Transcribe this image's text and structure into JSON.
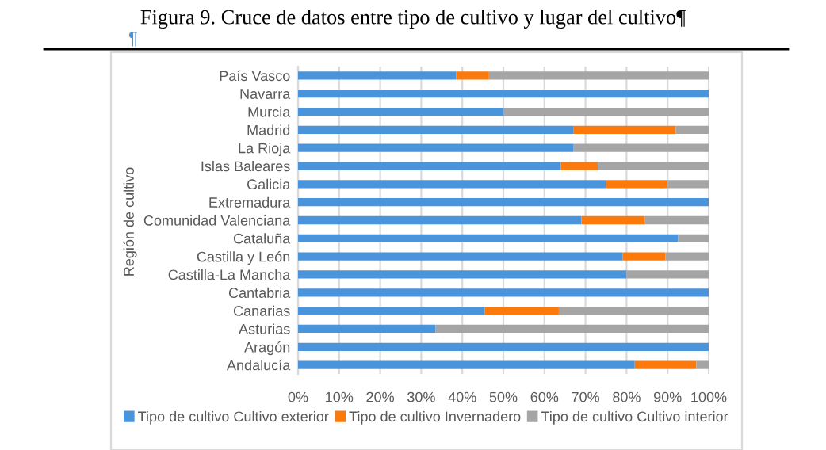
{
  "chart_data": {
    "type": "bar",
    "orientation": "horizontal",
    "stacked": true,
    "title": "Figura 9. Cruce de datos entre tipo de cultivo y lugar del cultivo¶",
    "ylabel": "Región de cultivo",
    "annotations": [
      "¶"
    ],
    "categories": [
      "País Vasco",
      "Navarra",
      "Murcia",
      "Madrid",
      "La Rioja",
      "Islas Baleares",
      "Galicia",
      "Extremadura",
      "Comunidad Valenciana",
      "Cataluña",
      "Castilla y León",
      "Castilla-La Mancha",
      "Cantabria",
      "Canarias",
      "Asturias",
      "Aragón",
      "Andalucía"
    ],
    "series": [
      {
        "name": "Tipo de cultivo Cultivo exterior",
        "color": "#4a94dc",
        "values": [
          38.5,
          100,
          50,
          67,
          67,
          64,
          75,
          100,
          69,
          92.5,
          79,
          80,
          100,
          45.5,
          33.5,
          100,
          82
        ]
      },
      {
        "name": "Tipo de cultivo Invernadero",
        "color": "#fc7a0c",
        "values": [
          8,
          0,
          0,
          25,
          0,
          9,
          15,
          0,
          15.5,
          0,
          10.5,
          0,
          0,
          18,
          0,
          0,
          15
        ]
      },
      {
        "name": "Tipo de cultivo Cultivo interior",
        "color": "#a5a5a5",
        "values": [
          53.5,
          0,
          50,
          8,
          33,
          27,
          10,
          0,
          15.5,
          7.5,
          10.5,
          20,
          0,
          36.5,
          66.5,
          0,
          3
        ]
      }
    ],
    "xlim": [
      0,
      100
    ],
    "xticks": [
      {
        "value": 0,
        "label": "0%"
      },
      {
        "value": 10,
        "label": "10%"
      },
      {
        "value": 20,
        "label": "20%"
      },
      {
        "value": 30,
        "label": "30%"
      },
      {
        "value": 40,
        "label": "40%"
      },
      {
        "value": 50,
        "label": "50%"
      },
      {
        "value": 60,
        "label": "60%"
      },
      {
        "value": 70,
        "label": "70%"
      },
      {
        "value": 80,
        "label": "80%"
      },
      {
        "value": 90,
        "label": "90%"
      },
      {
        "value": 100,
        "label": "100%"
      }
    ],
    "grid": "x",
    "legend": "bottom"
  }
}
